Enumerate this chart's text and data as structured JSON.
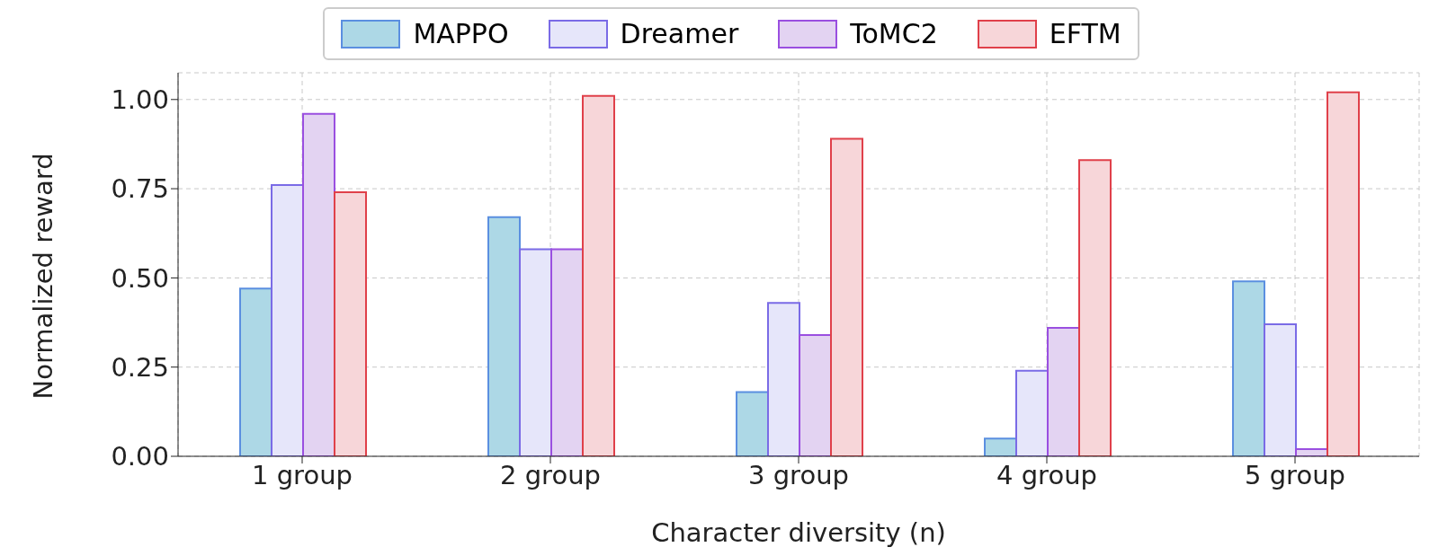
{
  "chart_data": {
    "type": "bar",
    "ylabel": "Normalized reward",
    "xlabel": "Character diversity (n)",
    "categories": [
      "1 group",
      "2 group",
      "3 group",
      "4 group",
      "5 group"
    ],
    "series": [
      {
        "name": "MAPPO",
        "color": "#add8e6",
        "values": [
          0.47,
          0.67,
          0.18,
          0.05,
          0.49
        ]
      },
      {
        "name": "Dreamer",
        "color": "#e6e6fa",
        "values": [
          0.76,
          0.58,
          0.43,
          0.24,
          0.37
        ]
      },
      {
        "name": "ToMC2",
        "color": "#e3d3f2",
        "values": [
          0.96,
          0.58,
          0.34,
          0.36,
          0.02
        ]
      },
      {
        "name": "EFTM",
        "color": "#f7d6d9",
        "values": [
          0.74,
          1.01,
          0.89,
          0.83,
          1.02
        ]
      }
    ],
    "ylim": [
      0,
      1.075
    ],
    "yticks": [
      {
        "value": 0,
        "label": "0.00"
      },
      {
        "value": 0.25,
        "label": "0.25"
      },
      {
        "value": 0.5,
        "label": "0.50"
      },
      {
        "value": 0.75,
        "label": "0.75"
      },
      {
        "value": 1,
        "label": "1.00"
      }
    ],
    "grid": true,
    "legend": "top"
  }
}
